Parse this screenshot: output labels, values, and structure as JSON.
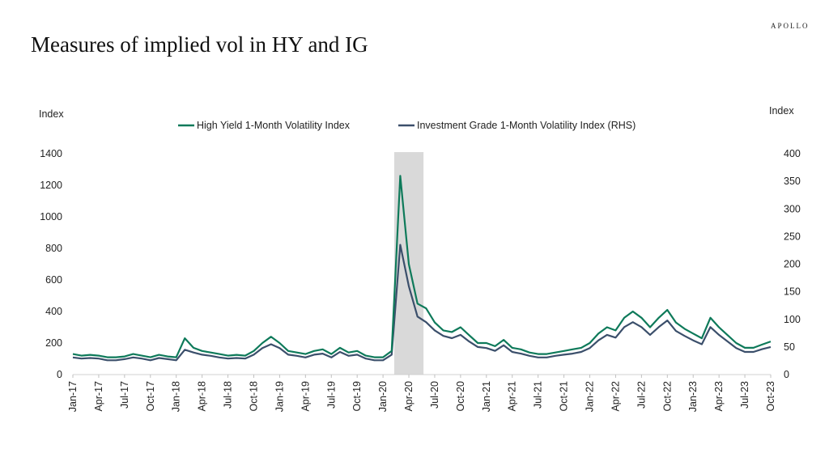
{
  "brand": "APOLLO",
  "title": "Measures of implied vol in HY and IG",
  "chart_data": {
    "type": "line",
    "title": "Measures of implied vol in HY and IG",
    "ylabel_left": "Index",
    "ylabel_right": "Index",
    "ylim_left": [
      0,
      1400
    ],
    "ylim_right": [
      0,
      400
    ],
    "yticks_left": [
      "0",
      "200",
      "400",
      "600",
      "800",
      "1000",
      "1200",
      "1400"
    ],
    "yticks_right": [
      "0",
      "50",
      "100",
      "150",
      "200",
      "250",
      "300",
      "350",
      "400"
    ],
    "xticks": [
      "Jan-17",
      "Apr-17",
      "Jul-17",
      "Oct-17",
      "Jan-18",
      "Apr-18",
      "Jul-18",
      "Oct-18",
      "Jan-19",
      "Apr-19",
      "Jul-19",
      "Oct-19",
      "Jan-20",
      "Apr-20",
      "Jul-20",
      "Oct-20",
      "Jan-21",
      "Apr-21",
      "Jul-21",
      "Oct-21",
      "Jan-22",
      "Apr-22",
      "Jul-22",
      "Oct-22",
      "Jan-23",
      "Apr-23",
      "Jul-23",
      "Oct-23"
    ],
    "x_start": "Jan-17",
    "x_frequency": "monthly",
    "grid": false,
    "legend_position": "top",
    "shaded_period": [
      "Feb-20",
      "May-20"
    ],
    "shade_color": "#d9d9d9",
    "series": [
      {
        "name": "High Yield 1-Month Volatility Index",
        "axis": "left",
        "color": "#0e7a5a",
        "values": [
          130,
          120,
          125,
          120,
          110,
          110,
          115,
          130,
          120,
          110,
          125,
          115,
          110,
          230,
          170,
          150,
          140,
          130,
          120,
          125,
          120,
          150,
          200,
          240,
          200,
          150,
          140,
          130,
          150,
          160,
          130,
          170,
          140,
          150,
          120,
          110,
          110,
          150,
          1260,
          700,
          450,
          420,
          330,
          280,
          270,
          300,
          250,
          200,
          200,
          180,
          220,
          170,
          160,
          140,
          130,
          130,
          140,
          150,
          160,
          170,
          200,
          260,
          300,
          280,
          360,
          400,
          360,
          300,
          360,
          410,
          330,
          290,
          260,
          230,
          360,
          300,
          250,
          200,
          170,
          170,
          190,
          210
        ]
      },
      {
        "name": "Investment Grade 1-Month Volatility Index (RHS)",
        "axis": "right",
        "color": "#3b4f6b",
        "values": [
          31,
          29,
          30,
          29,
          26,
          26,
          28,
          31,
          29,
          26,
          30,
          28,
          26,
          45,
          40,
          36,
          34,
          31,
          29,
          30,
          29,
          36,
          48,
          55,
          48,
          36,
          34,
          31,
          36,
          38,
          31,
          41,
          34,
          36,
          29,
          26,
          26,
          36,
          235,
          160,
          105,
          95,
          80,
          70,
          66,
          72,
          60,
          50,
          48,
          43,
          53,
          41,
          38,
          34,
          31,
          31,
          34,
          36,
          38,
          41,
          48,
          62,
          72,
          67,
          86,
          95,
          86,
          72,
          86,
          98,
          79,
          70,
          62,
          55,
          86,
          72,
          60,
          48,
          41,
          41,
          46,
          50
        ]
      }
    ]
  }
}
